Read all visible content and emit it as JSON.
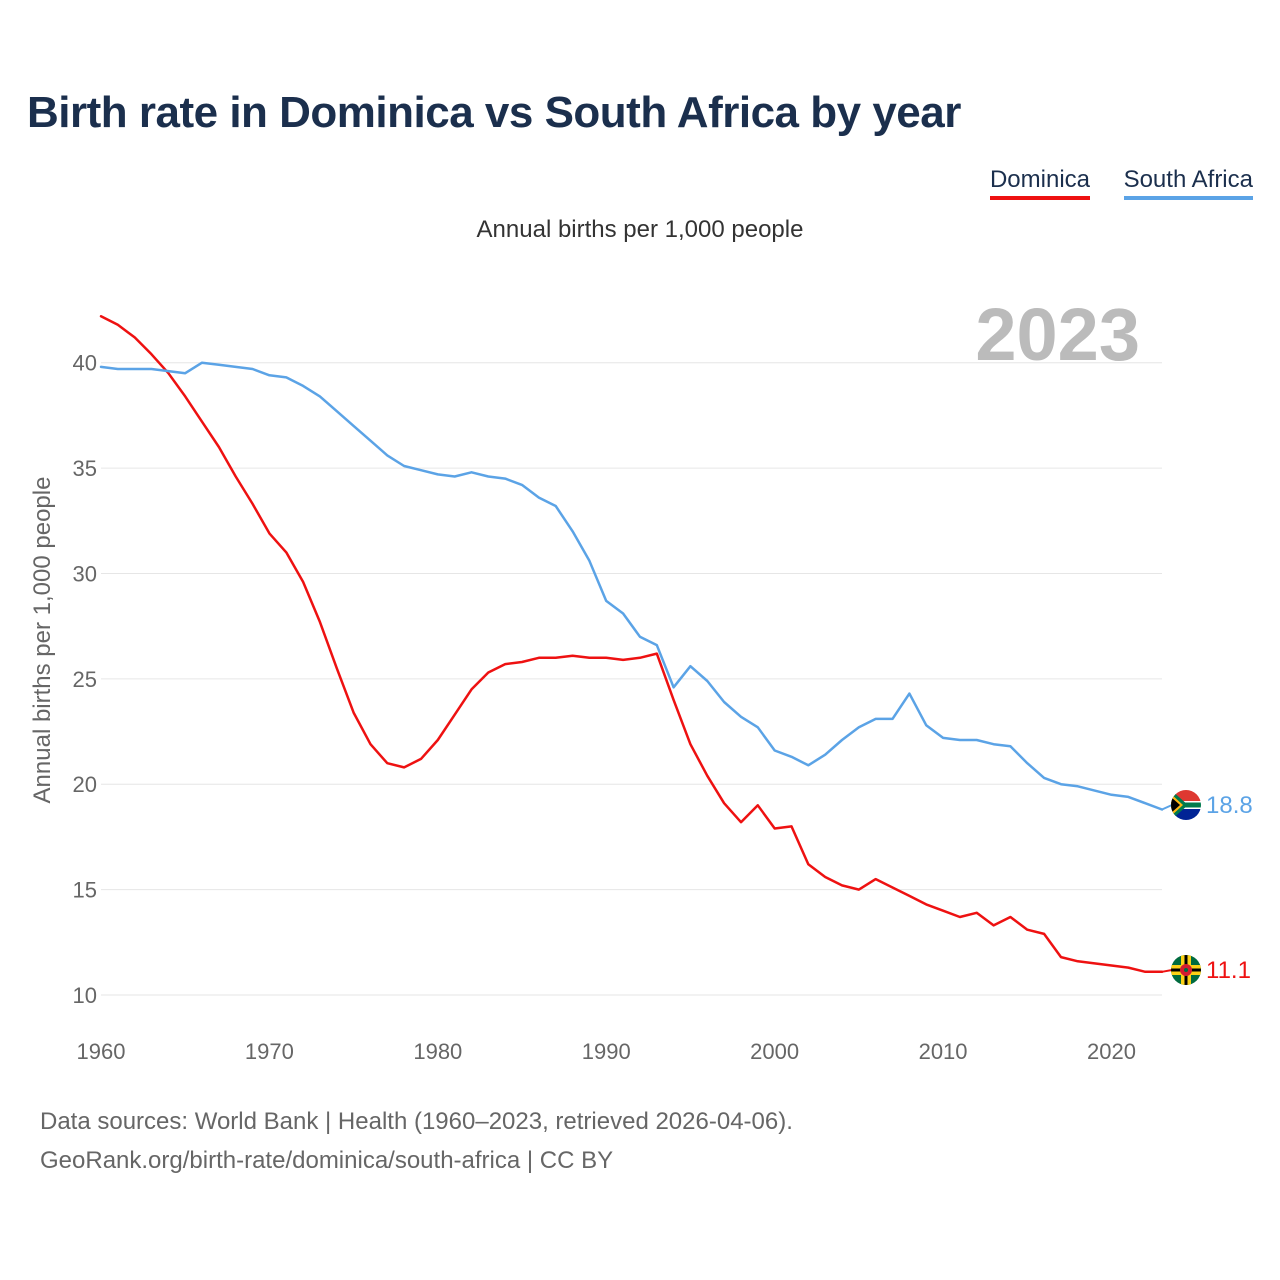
{
  "title": "Birth rate in Dominica vs South Africa by year",
  "subtitle": "Annual births per 1,000 people",
  "sources": [
    "Data sources: World Bank | Health (1960–2023, retrieved 2026-04-06).",
    "GeoRank.org/birth-rate/dominica/south-africa | CC BY"
  ],
  "chart_data": {
    "type": "line",
    "title": "Birth rate in Dominica vs South Africa by year",
    "subtitle": "Annual births per 1,000 people",
    "xlabel": "",
    "ylabel": "Annual births per 1,000 people",
    "year_watermark": "2023",
    "xlim": [
      1960,
      2023
    ],
    "ylim": [
      10,
      42.5
    ],
    "x_ticks": [
      1960,
      1970,
      1980,
      1990,
      2000,
      2010,
      2020
    ],
    "y_ticks": [
      10,
      15,
      20,
      25,
      30,
      35,
      40
    ],
    "grid": true,
    "legend_position": "top-right",
    "x": [
      1960,
      1961,
      1962,
      1963,
      1964,
      1965,
      1966,
      1967,
      1968,
      1969,
      1970,
      1971,
      1972,
      1973,
      1974,
      1975,
      1976,
      1977,
      1978,
      1979,
      1980,
      1981,
      1982,
      1983,
      1984,
      1985,
      1986,
      1987,
      1988,
      1989,
      1990,
      1991,
      1992,
      1993,
      1994,
      1995,
      1996,
      1997,
      1998,
      1999,
      2000,
      2001,
      2002,
      2003,
      2004,
      2005,
      2006,
      2007,
      2008,
      2009,
      2010,
      2011,
      2012,
      2013,
      2014,
      2015,
      2016,
      2017,
      2018,
      2019,
      2020,
      2021,
      2022,
      2023
    ],
    "series": [
      {
        "name": "Dominica",
        "color": "#ee1111",
        "end_label": "11.1",
        "values": [
          42.2,
          41.8,
          41.2,
          40.4,
          39.5,
          38.4,
          37.2,
          36.0,
          34.6,
          33.3,
          31.9,
          31.0,
          29.6,
          27.7,
          25.5,
          23.4,
          21.9,
          21.0,
          20.8,
          21.2,
          22.1,
          23.3,
          24.5,
          25.3,
          25.7,
          25.8,
          26.0,
          26.0,
          26.1,
          26.0,
          26.0,
          25.9,
          26.0,
          26.2,
          24.0,
          21.9,
          20.4,
          19.1,
          18.2,
          19.0,
          17.9,
          18.0,
          16.2,
          15.6,
          15.2,
          15.0,
          15.5,
          15.1,
          14.7,
          14.3,
          14.0,
          13.7,
          13.9,
          13.3,
          13.7,
          13.1,
          12.9,
          11.8,
          11.6,
          11.5,
          11.4,
          11.3,
          11.1,
          11.1
        ]
      },
      {
        "name": "South Africa",
        "color": "#5ba3e6",
        "end_label": "18.8",
        "values": [
          39.8,
          39.7,
          39.7,
          39.7,
          39.6,
          39.5,
          40.0,
          39.9,
          39.8,
          39.7,
          39.4,
          39.3,
          38.9,
          38.4,
          37.7,
          37.0,
          36.3,
          35.6,
          35.1,
          34.9,
          34.7,
          34.6,
          34.8,
          34.6,
          34.5,
          34.2,
          33.6,
          33.2,
          32.0,
          30.6,
          28.7,
          28.1,
          27.0,
          26.6,
          24.6,
          25.6,
          24.9,
          23.9,
          23.2,
          22.7,
          21.6,
          21.3,
          20.9,
          21.4,
          22.1,
          22.7,
          23.1,
          23.1,
          24.3,
          22.8,
          22.2,
          22.1,
          22.1,
          21.9,
          21.8,
          21.0,
          20.3,
          20.0,
          19.9,
          19.7,
          19.5,
          19.4,
          19.1,
          18.8
        ]
      }
    ]
  }
}
